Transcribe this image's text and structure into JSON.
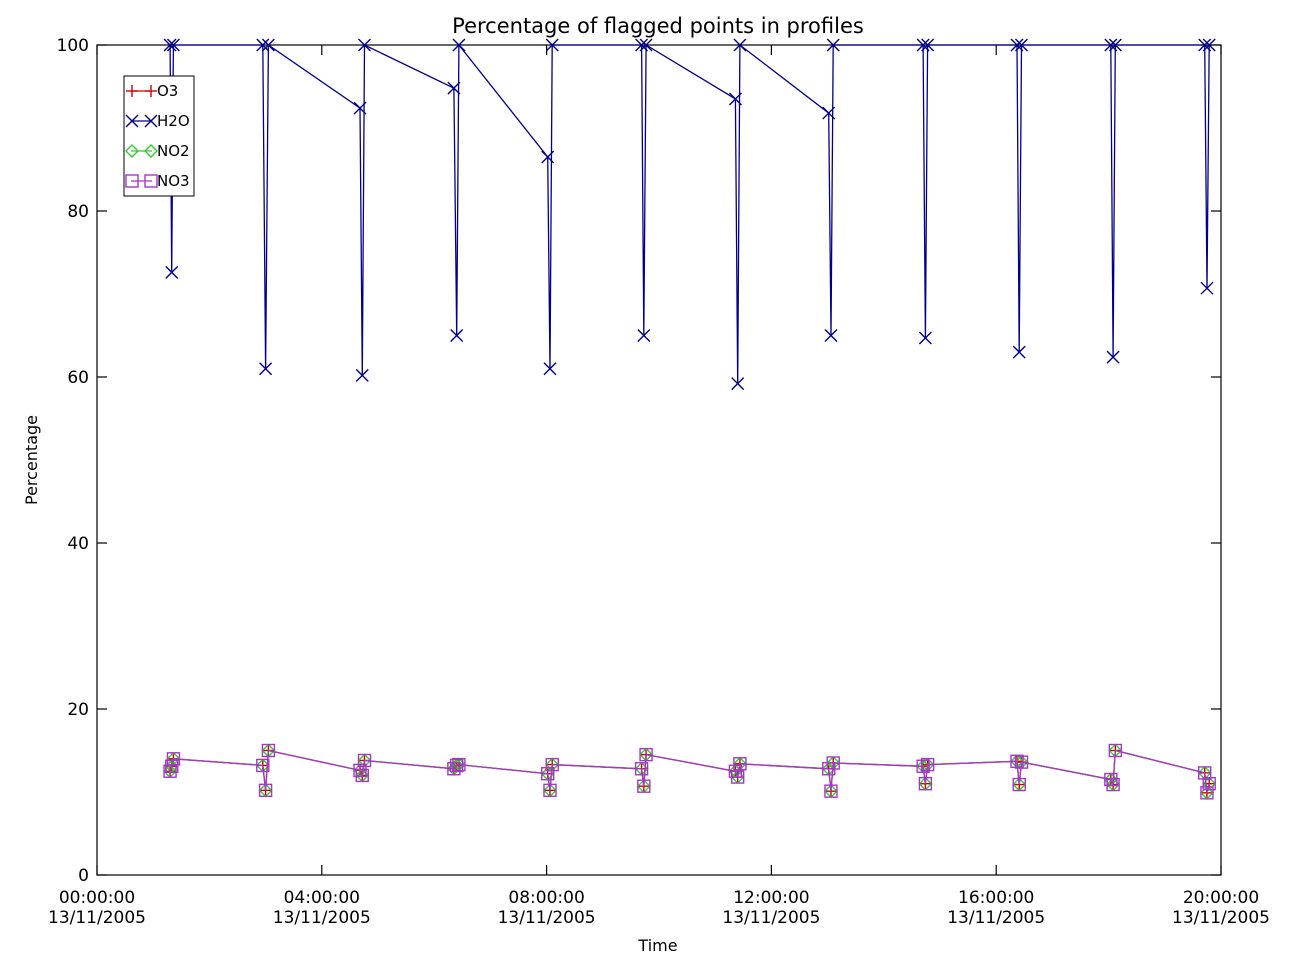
{
  "chart_data": {
    "type": "line",
    "title": "Percentage of flagged points in profiles",
    "xlabel": "Time",
    "ylabel": "Percentage",
    "x_unit": "hours since 00:00:00 13/11/2005",
    "xlim": [
      0,
      20
    ],
    "ylim": [
      0,
      100
    ],
    "x_ticks": [
      {
        "value": 0,
        "line1": "00:00:00",
        "line2": "13/11/2005"
      },
      {
        "value": 4,
        "line1": "04:00:00",
        "line2": "13/11/2005"
      },
      {
        "value": 8,
        "line1": "08:00:00",
        "line2": "13/11/2005"
      },
      {
        "value": 12,
        "line1": "12:00:00",
        "line2": "13/11/2005"
      },
      {
        "value": 16,
        "line1": "16:00:00",
        "line2": "13/11/2005"
      },
      {
        "value": 20,
        "line1": "20:00:00",
        "line2": "13/11/2005"
      }
    ],
    "y_ticks": [
      0,
      20,
      40,
      60,
      80,
      100
    ],
    "legend_position": "top-left",
    "grid": false,
    "series": [
      {
        "name": "O3",
        "color": "#cc0000",
        "marker": "plus",
        "x": [
          1.3,
          1.33,
          1.36,
          2.95,
          3.0,
          3.05,
          4.68,
          4.72,
          4.76,
          6.35,
          6.4,
          6.44,
          8.02,
          8.06,
          8.1,
          9.69,
          9.73,
          9.77,
          11.36,
          11.4,
          11.44,
          13.02,
          13.06,
          13.1,
          14.7,
          14.74,
          14.78,
          16.37,
          16.41,
          16.45,
          18.04,
          18.08,
          18.12,
          19.71,
          19.75,
          19.79
        ],
        "y": [
          12.5,
          13.1,
          14.0,
          13.2,
          10.2,
          15.0,
          12.6,
          12.0,
          13.8,
          12.8,
          13.2,
          13.3,
          12.2,
          10.2,
          13.3,
          12.8,
          10.7,
          14.5,
          12.5,
          11.8,
          13.4,
          12.8,
          10.1,
          13.5,
          13.1,
          11.0,
          13.3,
          13.7,
          10.9,
          13.6,
          11.5,
          10.9,
          15.0,
          12.3,
          9.9,
          11.0
        ]
      },
      {
        "name": "H2O",
        "color": "#00008b",
        "marker": "x",
        "x": [
          1.3,
          1.33,
          1.36,
          2.95,
          3.0,
          3.05,
          4.68,
          4.72,
          4.76,
          6.35,
          6.4,
          6.44,
          8.02,
          8.06,
          8.1,
          9.69,
          9.73,
          9.77,
          11.36,
          11.4,
          11.44,
          13.02,
          13.06,
          13.1,
          14.7,
          14.74,
          14.78,
          16.37,
          16.41,
          16.45,
          18.04,
          18.08,
          18.12,
          19.71,
          19.75,
          19.79
        ],
        "y": [
          100.0,
          72.6,
          100.0,
          100.0,
          61.0,
          100.0,
          92.4,
          60.2,
          100.0,
          94.8,
          65.0,
          100.0,
          86.5,
          61.0,
          100.0,
          100.0,
          65.0,
          100.0,
          93.5,
          59.2,
          100.0,
          91.8,
          65.0,
          100.0,
          100.0,
          64.7,
          100.0,
          100.0,
          63.0,
          100.0,
          100.0,
          62.4,
          100.0,
          100.0,
          70.7,
          100.0
        ]
      },
      {
        "name": "NO2",
        "color": "#33cc33",
        "marker": "diamond",
        "x": [
          1.3,
          1.33,
          1.36,
          2.95,
          3.0,
          3.05,
          4.68,
          4.72,
          4.76,
          6.35,
          6.4,
          6.44,
          8.02,
          8.06,
          8.1,
          9.69,
          9.73,
          9.77,
          11.36,
          11.4,
          11.44,
          13.02,
          13.06,
          13.1,
          14.7,
          14.74,
          14.78,
          16.37,
          16.41,
          16.45,
          18.04,
          18.08,
          18.12,
          19.71,
          19.75,
          19.79
        ],
        "y": [
          12.5,
          13.1,
          14.0,
          13.2,
          10.2,
          15.0,
          12.6,
          12.0,
          13.8,
          12.8,
          13.2,
          13.3,
          12.2,
          10.2,
          13.3,
          12.8,
          10.7,
          14.5,
          12.5,
          11.8,
          13.4,
          12.8,
          10.1,
          13.5,
          13.1,
          11.0,
          13.3,
          13.7,
          10.9,
          13.6,
          11.5,
          10.9,
          15.0,
          12.3,
          9.9,
          11.0
        ]
      },
      {
        "name": "NO3",
        "color": "#aa33cc",
        "marker": "square",
        "x": [
          1.3,
          1.33,
          1.36,
          2.95,
          3.0,
          3.05,
          4.68,
          4.72,
          4.76,
          6.35,
          6.4,
          6.44,
          8.02,
          8.06,
          8.1,
          9.69,
          9.73,
          9.77,
          11.36,
          11.4,
          11.44,
          13.02,
          13.06,
          13.1,
          14.7,
          14.74,
          14.78,
          16.37,
          16.41,
          16.45,
          18.04,
          18.08,
          18.12,
          19.71,
          19.75,
          19.79
        ],
        "y": [
          12.5,
          13.1,
          14.0,
          13.2,
          10.2,
          15.0,
          12.6,
          12.0,
          13.8,
          12.8,
          13.2,
          13.3,
          12.2,
          10.2,
          13.3,
          12.8,
          10.7,
          14.5,
          12.5,
          11.8,
          13.4,
          12.8,
          10.1,
          13.5,
          13.1,
          11.0,
          13.3,
          13.7,
          10.9,
          13.6,
          11.5,
          10.9,
          15.0,
          12.3,
          9.9,
          11.0
        ]
      }
    ]
  }
}
